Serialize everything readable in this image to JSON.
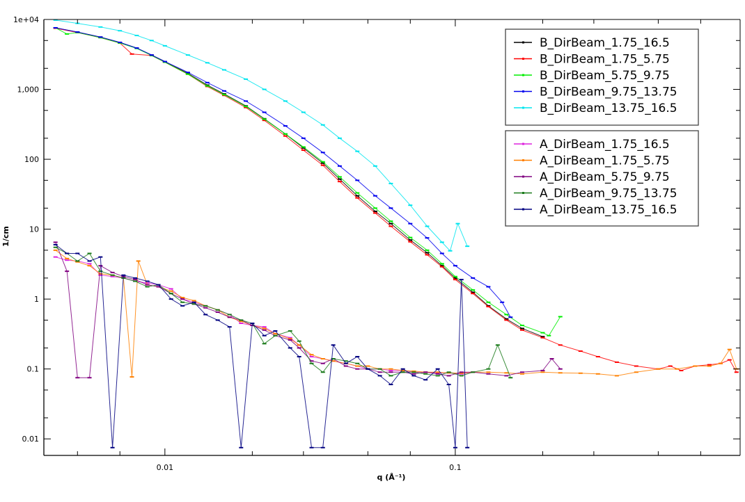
{
  "chart_data": {
    "type": "line",
    "title": "",
    "xlabel": "q (Å⁻¹)",
    "ylabel": "1/cm",
    "xscale": "log",
    "yscale": "log",
    "xlim": [
      0.00383,
      0.957
    ],
    "ylim": [
      0.0058,
      10000
    ],
    "x_tick_labels": [
      {
        "value": 0.01,
        "label": "0.01"
      },
      {
        "value": 0.1,
        "label": "0.1"
      }
    ],
    "y_tick_labels": [
      {
        "value": 10000,
        "label": "1e+04"
      },
      {
        "value": 1000,
        "label": "1,000"
      },
      {
        "value": 100,
        "label": "100"
      },
      {
        "value": 10,
        "label": "10"
      },
      {
        "value": 1,
        "label": "1"
      },
      {
        "value": 0.1,
        "label": "0.1"
      },
      {
        "value": 0.01,
        "label": "0.01"
      }
    ],
    "grid": false,
    "legend_placement": "top-right",
    "legend_groups": [
      [
        "B_DirBeam_1.75_16.5",
        "B_DirBeam_1.75_5.75",
        "B_DirBeam_5.75_9.75",
        "B_DirBeam_9.75_13.75",
        "B_DirBeam_13.75_16.5"
      ],
      [
        "A_DirBeam_1.75_16.5",
        "A_DirBeam_1.75_5.75",
        "A_DirBeam_5.75_9.75",
        "A_DirBeam_9.75_13.75",
        "A_DirBeam_13.75_16.5"
      ]
    ],
    "series": [
      {
        "name": "B_DirBeam_1.75_16.5",
        "color": "#000000",
        "x": [
          0.0042,
          0.005,
          0.006,
          0.007,
          0.008,
          0.009,
          0.01,
          0.012,
          0.014,
          0.016,
          0.019,
          0.022,
          0.026,
          0.03,
          0.035,
          0.04,
          0.046,
          0.053,
          0.06,
          0.07,
          0.08,
          0.09,
          0.1,
          0.115,
          0.13,
          0.15,
          0.17,
          0.2
        ],
        "y": [
          7600,
          6600,
          5600,
          4700,
          3900,
          3100,
          2500,
          1700,
          1150,
          860,
          580,
          380,
          230,
          145,
          88,
          52,
          30,
          18,
          12,
          7,
          4.6,
          3.0,
          2.0,
          1.25,
          0.8,
          0.52,
          0.38,
          0.29
        ]
      },
      {
        "name": "B_DirBeam_1.75_5.75",
        "color": "#ff0000",
        "x": [
          0.0042,
          0.005,
          0.006,
          0.007,
          0.0077,
          0.009,
          0.01,
          0.012,
          0.014,
          0.016,
          0.019,
          0.022,
          0.026,
          0.03,
          0.035,
          0.04,
          0.046,
          0.053,
          0.06,
          0.07,
          0.08,
          0.09,
          0.1,
          0.115,
          0.13,
          0.15,
          0.17,
          0.2,
          0.23,
          0.27,
          0.31,
          0.36,
          0.42,
          0.5,
          0.55,
          0.6,
          0.67,
          0.75,
          0.82,
          0.88,
          0.93
        ],
        "y": [
          7500,
          6500,
          5500,
          4600,
          3200,
          3050,
          2450,
          1650,
          1100,
          820,
          550,
          360,
          215,
          135,
          82,
          48,
          28,
          17,
          11,
          6.6,
          4.3,
          2.9,
          1.9,
          1.2,
          0.78,
          0.5,
          0.36,
          0.28,
          0.22,
          0.18,
          0.15,
          0.125,
          0.11,
          0.1,
          0.11,
          0.095,
          0.11,
          0.115,
          0.12,
          0.135,
          0.09
        ]
      },
      {
        "name": "B_DirBeam_5.75_9.75",
        "color": "#00ee00",
        "x": [
          0.0042,
          0.0046,
          0.005,
          0.006,
          0.007,
          0.008,
          0.009,
          0.01,
          0.012,
          0.014,
          0.016,
          0.019,
          0.022,
          0.026,
          0.03,
          0.035,
          0.04,
          0.046,
          0.053,
          0.06,
          0.07,
          0.08,
          0.09,
          0.1,
          0.115,
          0.13,
          0.15,
          0.17,
          0.2,
          0.21,
          0.23
        ],
        "y": [
          7600,
          6200,
          6500,
          5500,
          4600,
          3850,
          3050,
          2450,
          1650,
          1120,
          840,
          570,
          375,
          230,
          150,
          92,
          56,
          33,
          20,
          13,
          7.6,
          5.0,
          3.2,
          2.1,
          1.35,
          0.9,
          0.6,
          0.42,
          0.33,
          0.3,
          0.56
        ]
      },
      {
        "name": "B_DirBeam_9.75_13.75",
        "color": "#0000ee",
        "x": [
          0.0042,
          0.005,
          0.006,
          0.007,
          0.008,
          0.009,
          0.01,
          0.012,
          0.014,
          0.016,
          0.019,
          0.022,
          0.026,
          0.03,
          0.035,
          0.04,
          0.046,
          0.053,
          0.06,
          0.07,
          0.08,
          0.09,
          0.1,
          0.115,
          0.13,
          0.145,
          0.155
        ],
        "y": [
          7600,
          6600,
          5600,
          4700,
          3900,
          3100,
          2500,
          1750,
          1250,
          950,
          680,
          470,
          300,
          200,
          125,
          80,
          50,
          30,
          20,
          12,
          7.5,
          4.5,
          3.0,
          2.0,
          1.5,
          0.9,
          0.55
        ]
      },
      {
        "name": "B_DirBeam_13.75_16.5",
        "color": "#00e5ee",
        "x": [
          0.0042,
          0.005,
          0.006,
          0.007,
          0.008,
          0.009,
          0.01,
          0.012,
          0.014,
          0.016,
          0.019,
          0.022,
          0.026,
          0.03,
          0.035,
          0.04,
          0.046,
          0.053,
          0.06,
          0.07,
          0.08,
          0.09,
          0.096,
          0.102,
          0.11
        ],
        "y": [
          9800,
          8800,
          7800,
          6900,
          5900,
          5000,
          4200,
          3100,
          2400,
          1900,
          1400,
          1000,
          680,
          470,
          310,
          200,
          130,
          80,
          45,
          22,
          11,
          6.5,
          4.9,
          12,
          5.7
        ]
      },
      {
        "name": "A_DirBeam_1.75_16.5",
        "color": "#dd22dd",
        "x": [
          0.0042,
          0.0046,
          0.005,
          0.0055,
          0.006,
          0.0066,
          0.0072,
          0.0079,
          0.0087,
          0.0095,
          0.0105,
          0.0115,
          0.0126,
          0.0138,
          0.0152,
          0.0167,
          0.0183,
          0.02,
          0.022,
          0.024,
          0.027,
          0.029,
          0.032,
          0.035,
          0.038,
          0.042,
          0.046,
          0.05,
          0.055,
          0.06,
          0.066,
          0.072,
          0.079,
          0.087,
          0.095,
          0.105,
          0.115
        ],
        "y": [
          4,
          3.6,
          3.5,
          3.2,
          2.2,
          2.1,
          2,
          1.8,
          1.7,
          1.6,
          1.4,
          1.0,
          0.9,
          0.8,
          0.7,
          0.6,
          0.45,
          0.42,
          0.4,
          0.32,
          0.28,
          0.22,
          0.15,
          0.14,
          0.13,
          0.12,
          0.11,
          0.1,
          0.1,
          0.095,
          0.095,
          0.09,
          0.09,
          0.088,
          0.088,
          0.085,
          0.09
        ]
      },
      {
        "name": "A_DirBeam_1.75_5.75",
        "color": "#ff8000",
        "x": [
          0.0042,
          0.0046,
          0.005,
          0.0055,
          0.006,
          0.0066,
          0.0072,
          0.0077,
          0.0081,
          0.0087,
          0.0095,
          0.0105,
          0.0115,
          0.0126,
          0.0138,
          0.0152,
          0.0167,
          0.0183,
          0.02,
          0.022,
          0.024,
          0.027,
          0.029,
          0.032,
          0.035,
          0.038,
          0.042,
          0.046,
          0.05,
          0.055,
          0.06,
          0.066,
          0.072,
          0.079,
          0.087,
          0.095,
          0.105,
          0.115,
          0.13,
          0.15,
          0.17,
          0.2,
          0.23,
          0.27,
          0.31,
          0.36,
          0.42,
          0.5,
          0.58,
          0.67,
          0.75,
          0.82,
          0.88,
          0.93
        ],
        "y": [
          5,
          3.8,
          3.4,
          3,
          2.3,
          2.2,
          2.0,
          0.077,
          3.5,
          1.6,
          1.5,
          1.3,
          1.05,
          0.95,
          0.8,
          0.7,
          0.55,
          0.48,
          0.42,
          0.38,
          0.32,
          0.27,
          0.22,
          0.16,
          0.14,
          0.13,
          0.12,
          0.11,
          0.11,
          0.1,
          0.1,
          0.095,
          0.093,
          0.09,
          0.09,
          0.088,
          0.087,
          0.09,
          0.09,
          0.088,
          0.085,
          0.09,
          0.088,
          0.087,
          0.085,
          0.08,
          0.09,
          0.1,
          0.1,
          0.11,
          0.11,
          0.12,
          0.19,
          0.1
        ]
      },
      {
        "name": "A_DirBeam_5.75_9.75",
        "color": "#800080",
        "x": [
          0.0042,
          0.0046,
          0.005,
          0.0055,
          0.006,
          0.0066,
          0.0072,
          0.0079,
          0.0087,
          0.0095,
          0.0105,
          0.0115,
          0.0126,
          0.0138,
          0.0152,
          0.0167,
          0.0183,
          0.02,
          0.022,
          0.024,
          0.027,
          0.029,
          0.032,
          0.035,
          0.038,
          0.042,
          0.046,
          0.05,
          0.055,
          0.06,
          0.066,
          0.072,
          0.079,
          0.087,
          0.095,
          0.105,
          0.115,
          0.13,
          0.15,
          0.17,
          0.2,
          0.215,
          0.23
        ],
        "y": [
          6.5,
          2.5,
          0.075,
          0.075,
          3,
          2.4,
          2.1,
          1.9,
          1.6,
          1.5,
          1.2,
          1.0,
          0.85,
          0.75,
          0.65,
          0.55,
          0.5,
          0.42,
          0.36,
          0.3,
          0.26,
          0.2,
          0.13,
          0.12,
          0.14,
          0.11,
          0.1,
          0.1,
          0.09,
          0.09,
          0.09,
          0.085,
          0.09,
          0.085,
          0.08,
          0.09,
          0.09,
          0.085,
          0.08,
          0.09,
          0.095,
          0.14,
          0.1
        ]
      },
      {
        "name": "A_DirBeam_9.75_13.75",
        "color": "#1a7a1a",
        "x": [
          0.0042,
          0.0046,
          0.005,
          0.0055,
          0.006,
          0.0066,
          0.0072,
          0.0079,
          0.0087,
          0.0095,
          0.0105,
          0.0115,
          0.0126,
          0.0138,
          0.0152,
          0.0167,
          0.0183,
          0.02,
          0.022,
          0.024,
          0.027,
          0.029,
          0.032,
          0.035,
          0.038,
          0.042,
          0.046,
          0.05,
          0.055,
          0.06,
          0.066,
          0.072,
          0.079,
          0.087,
          0.095,
          0.105,
          0.115,
          0.13,
          0.14,
          0.155
        ],
        "y": [
          5.5,
          4.5,
          3.5,
          4.5,
          2.5,
          2.2,
          2.0,
          1.8,
          1.5,
          1.6,
          1.2,
          0.9,
          0.85,
          0.8,
          0.7,
          0.6,
          0.5,
          0.45,
          0.23,
          0.3,
          0.35,
          0.25,
          0.12,
          0.09,
          0.14,
          0.13,
          0.12,
          0.1,
          0.1,
          0.08,
          0.09,
          0.09,
          0.085,
          0.08,
          0.09,
          0.08,
          0.09,
          0.1,
          0.22,
          0.075
        ]
      },
      {
        "name": "A_DirBeam_13.75_16.5",
        "color": "#000080",
        "x": [
          0.0042,
          0.0046,
          0.005,
          0.0055,
          0.006,
          0.0066,
          0.0072,
          0.0079,
          0.0087,
          0.0095,
          0.0105,
          0.0115,
          0.0126,
          0.0138,
          0.0152,
          0.0167,
          0.0183,
          0.02,
          0.022,
          0.024,
          0.027,
          0.029,
          0.032,
          0.035,
          0.038,
          0.042,
          0.046,
          0.05,
          0.055,
          0.06,
          0.066,
          0.072,
          0.079,
          0.087,
          0.095,
          0.1,
          0.105,
          0.11
        ],
        "y": [
          6,
          4.5,
          4.5,
          3.5,
          4,
          0.0075,
          2.2,
          2.0,
          1.8,
          1.6,
          1.0,
          0.8,
          0.9,
          0.6,
          0.5,
          0.4,
          0.0075,
          0.45,
          0.3,
          0.35,
          0.2,
          0.15,
          0.0075,
          0.0075,
          0.22,
          0.12,
          0.15,
          0.1,
          0.08,
          0.06,
          0.1,
          0.08,
          0.07,
          0.1,
          0.06,
          0.0075,
          1.9,
          0.0075
        ]
      }
    ]
  }
}
